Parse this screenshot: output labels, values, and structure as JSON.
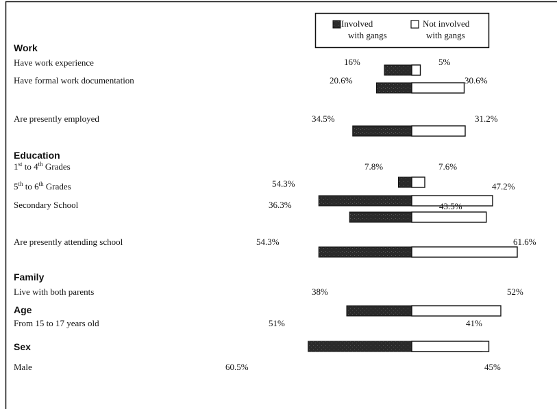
{
  "chart_data": {
    "type": "bar",
    "orientation": "diverging-horizontal",
    "legend": {
      "position": "top-right",
      "items": [
        {
          "line1": "Involved",
          "line2": "with gangs",
          "color": "#2a2a2a"
        },
        {
          "line1": "Not involved",
          "line2": "with gangs",
          "color": "#ffffff"
        }
      ]
    },
    "sections": [
      {
        "title": "Work",
        "rows": [
          {
            "label_parts": [
              {
                "t": "Have work experience"
              }
            ],
            "involved_label": "16%",
            "not_involved_label": "5%",
            "involved": 16,
            "not_involved": 5
          },
          {
            "label_parts": [
              {
                "t": "Have formal work documentation"
              }
            ],
            "involved_label": "20.6%",
            "not_involved_label": "30.6%",
            "involved": 20.6,
            "not_involved": 30.6
          },
          {
            "label_parts": [
              {
                "t": "Are presently employed"
              }
            ],
            "involved_label": "34.5%",
            "not_involved_label": "31.2%",
            "involved": 34.5,
            "not_involved": 31.2
          }
        ]
      },
      {
        "title": "Education",
        "rows": [
          {
            "label_parts": [
              {
                "t": "1"
              },
              {
                "t": "st",
                "sup": true
              },
              {
                "t": " to 4"
              },
              {
                "t": "th",
                "sup": true
              },
              {
                "t": " Grades"
              }
            ],
            "involved_label": "7.8%",
            "not_involved_label": "7.6%",
            "involved": 7.8,
            "not_involved": 7.6
          },
          {
            "label_parts": [
              {
                "t": "5"
              },
              {
                "t": "th",
                "sup": true
              },
              {
                "t": " to 6"
              },
              {
                "t": "th",
                "sup": true
              },
              {
                "t": " Grades"
              }
            ],
            "involved_label": "54.3%",
            "not_involved_label": "47.2%",
            "involved": 54.3,
            "not_involved": 47.2
          },
          {
            "label_parts": [
              {
                "t": "Secondary School"
              }
            ],
            "involved_label": "36.3%",
            "not_involved_label": "43.5%",
            "involved": 36.3,
            "not_involved": 43.5
          },
          {
            "label_parts": [
              {
                "t": "Are presently attending school"
              }
            ],
            "involved_label": "54.3%",
            "not_involved_label": "61.6%",
            "involved": 54.3,
            "not_involved": 61.6
          }
        ]
      },
      {
        "title": "Family",
        "rows": [
          {
            "label_parts": [
              {
                "t": "Live with both parents"
              }
            ],
            "involved_label": "38%",
            "not_involved_label": "52%",
            "involved": 38,
            "not_involved": 52
          }
        ]
      },
      {
        "title": "Age",
        "rows": [
          {
            "label_parts": [
              {
                "t": "From 15 to 17 years old"
              }
            ],
            "involved_label": "51%",
            "not_involved_label": "41%",
            "involved": 51,
            "not_involved": 41
          }
        ]
      },
      {
        "title": "Sex",
        "rows": [
          {
            "label_parts": [
              {
                "t": "Male"
              }
            ],
            "involved_label": "60.5%",
            "not_involved_label": "45%",
            "involved": 60.5,
            "not_involved": 45
          }
        ]
      }
    ],
    "colors": {
      "involved": "#2a2a2a",
      "not_involved": "#ffffff",
      "outline": "#111111"
    }
  }
}
